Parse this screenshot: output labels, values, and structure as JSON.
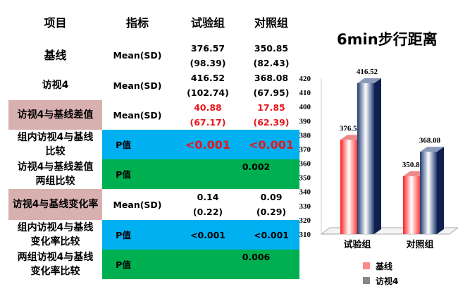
{
  "table": {
    "headers": [
      "项目",
      "指标",
      "试验组",
      "对照组"
    ],
    "rows": [
      {
        "item": "基线",
        "metric": "Mean(SD)",
        "trial": [
          "376.57",
          "(98.39)"
        ],
        "control": [
          "350.85",
          "(82.43)"
        ]
      },
      {
        "item": "访视4",
        "metric": "Mean(SD)",
        "trial": [
          "416.52",
          "(102.74)"
        ],
        "control": [
          "368.08",
          "(67.95)"
        ]
      },
      {
        "item": "访视4与基线差值",
        "metric": "Mean(SD)",
        "trial": [
          "40.88",
          "(67.17)"
        ],
        "control": [
          "17.85",
          "(62.39)"
        ]
      },
      {
        "item": "组内访视4与基线比较",
        "metric": "P值",
        "trial": "<0.001",
        "control": "<0.001"
      },
      {
        "item": "访视4与基线差值两组比较",
        "metric": "P值",
        "merged": "0.002"
      },
      {
        "item": "访视4与基线变化率",
        "metric": "Mean(SD)",
        "trial": [
          "0.14",
          "(0.22)"
        ],
        "control": [
          "0.09",
          "(0.29)"
        ]
      },
      {
        "item": "组内访视4与基线变化率比较",
        "metric": "P值",
        "trial": "<0.001",
        "control": "<0.001"
      },
      {
        "item": "两组访视4与基线变化率比较",
        "metric": "P值",
        "merged": "0.006"
      }
    ],
    "colors": {
      "highlight_pink": "#d9b0b0",
      "blue": "#00b0f0",
      "green": "#00b050",
      "red_text": "#e8161b"
    }
  },
  "chart_data": {
    "type": "bar",
    "title": "6min步行距离",
    "categories": [
      "试验组",
      "对照组"
    ],
    "series": [
      {
        "name": "基线",
        "values": [
          376.57,
          350.85
        ],
        "color": "#ff5050"
      },
      {
        "name": "访视4",
        "values": [
          416.52,
          368.08
        ],
        "color": "#1f3a70"
      }
    ],
    "ylim": [
      310,
      420
    ],
    "yticks": [
      310,
      320,
      330,
      340,
      350,
      360,
      370,
      380,
      390,
      400,
      410,
      420
    ],
    "data_labels": true,
    "legend": "bottom",
    "style": "3d"
  }
}
